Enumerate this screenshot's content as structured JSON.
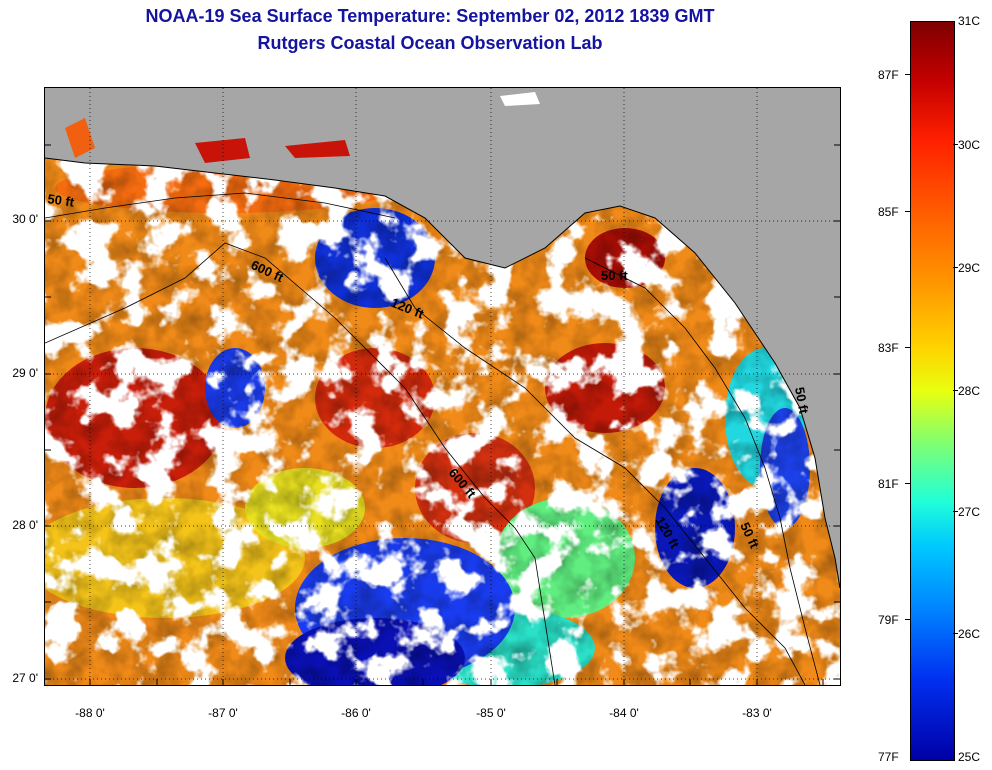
{
  "header": {
    "title_line1": "NOAA-19 Sea Surface Temperature:  September 02, 2012 1839 GMT",
    "title_line2": "Rutgers Coastal Ocean Observation Lab"
  },
  "map": {
    "y_ticks": [
      "30 0'",
      "29 0'",
      "28 0'",
      "27 0'"
    ],
    "x_ticks": [
      "-88 0'",
      "-87 0'",
      "-86 0'",
      "-85 0'",
      "-84 0'",
      "-83 0'"
    ],
    "contour_labels": [
      "50 ft",
      "600 ft",
      "120 ft",
      "50 ft",
      "600 ft",
      "120 ft",
      "50 ft",
      "50 ft"
    ]
  },
  "colorbar": {
    "celsius": [
      "31C",
      "30C",
      "29C",
      "28C",
      "27C",
      "26C",
      "25C"
    ],
    "fahrenheit": [
      "87F",
      "85F",
      "83F",
      "81F",
      "79F",
      "77F"
    ]
  },
  "colors": {
    "title": "#1414a0",
    "land": "#a6a6a6",
    "cloud": "#ffffff"
  }
}
